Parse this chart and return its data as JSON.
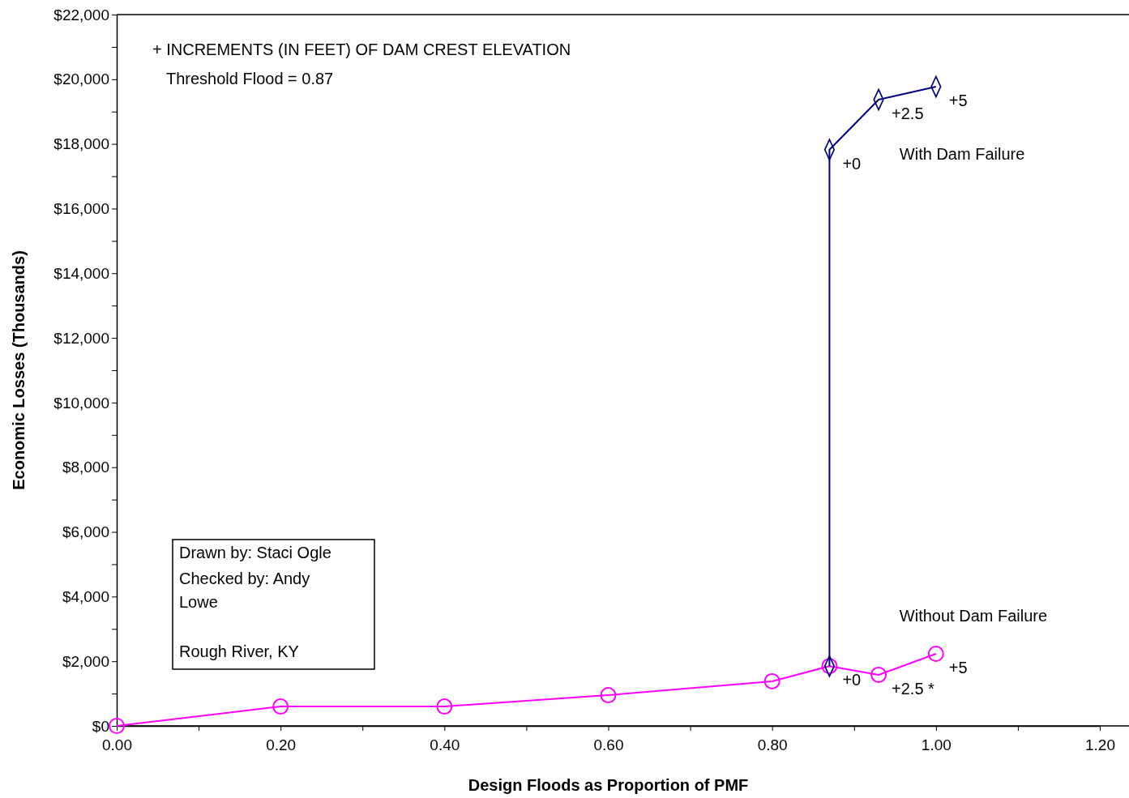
{
  "chart_data": {
    "type": "line",
    "xlabel": "Design Floods as Proportion of PMF",
    "ylabel": "Economic Losses (Thousands)",
    "xlim": [
      0,
      1.2
    ],
    "ylim": [
      0,
      22000
    ],
    "xticks": [
      {
        "value": 0,
        "label": "0.00"
      },
      {
        "value": 0.1,
        "label": null
      },
      {
        "value": 0.2,
        "label": "0.20"
      },
      {
        "value": 0.3,
        "label": null
      },
      {
        "value": 0.4,
        "label": "0.40"
      },
      {
        "value": 0.5,
        "label": null
      },
      {
        "value": 0.6,
        "label": "0.60"
      },
      {
        "value": 0.7,
        "label": null
      },
      {
        "value": 0.8,
        "label": "0.80"
      },
      {
        "value": 0.9,
        "label": null
      },
      {
        "value": 1.0,
        "label": "1.00"
      },
      {
        "value": 1.1,
        "label": null
      },
      {
        "value": 1.2,
        "label": "1.20"
      }
    ],
    "yticks": [
      {
        "value": 0,
        "label": "$0"
      },
      {
        "value": 1000,
        "label": null
      },
      {
        "value": 2000,
        "label": "$2,000"
      },
      {
        "value": 3000,
        "label": null
      },
      {
        "value": 4000,
        "label": "$4,000"
      },
      {
        "value": 5000,
        "label": null
      },
      {
        "value": 6000,
        "label": "$6,000"
      },
      {
        "value": 7000,
        "label": null
      },
      {
        "value": 8000,
        "label": "$8,000"
      },
      {
        "value": 9000,
        "label": null
      },
      {
        "value": 10000,
        "label": "$10,000"
      },
      {
        "value": 11000,
        "label": null
      },
      {
        "value": 12000,
        "label": "$12,000"
      },
      {
        "value": 13000,
        "label": null
      },
      {
        "value": 14000,
        "label": "$14,000"
      },
      {
        "value": 15000,
        "label": null
      },
      {
        "value": 16000,
        "label": "$16,000"
      },
      {
        "value": 17000,
        "label": null
      },
      {
        "value": 18000,
        "label": "$18,000"
      },
      {
        "value": 19000,
        "label": null
      },
      {
        "value": 20000,
        "label": "$20,000"
      },
      {
        "value": 21000,
        "label": null
      },
      {
        "value": 22000,
        "label": "$22,000"
      }
    ],
    "grid": false,
    "series": [
      {
        "name": "Without Dam Failure",
        "color": "#ff00ff",
        "marker": "circle",
        "x": [
          0,
          0.2,
          0.4,
          0.6,
          0.8,
          0.87,
          0.93,
          1.0
        ],
        "values": [
          0,
          600,
          600,
          950,
          1380,
          1850,
          1580,
          2230
        ]
      },
      {
        "name": "With Dam Failure",
        "color": "#000080",
        "marker": "diamond",
        "x": [
          0.87,
          0.87,
          0.93,
          1.0
        ],
        "values": [
          1850,
          17820,
          19370,
          19770
        ]
      }
    ],
    "annotations": [
      "+ INCREMENTS (IN FEET) OF DAM CREST ELEVATION",
      "Threshold Flood = 0.87",
      "Drawn by: Staci Ogle",
      "Checked by: Andy Lowe",
      "Rough River, KY",
      {
        "text": "+0",
        "x": 0.87,
        "y": 17820
      },
      {
        "text": "+2.5",
        "x": 0.93,
        "y": 19370
      },
      {
        "text": "+5",
        "x": 1.0,
        "y": 19770
      },
      {
        "text": "+0",
        "x": 0.87,
        "y": 1850
      },
      {
        "text": "+2.5 *",
        "x": 0.93,
        "y": 1580
      },
      {
        "text": "+5",
        "x": 1.0,
        "y": 2230
      }
    ]
  }
}
